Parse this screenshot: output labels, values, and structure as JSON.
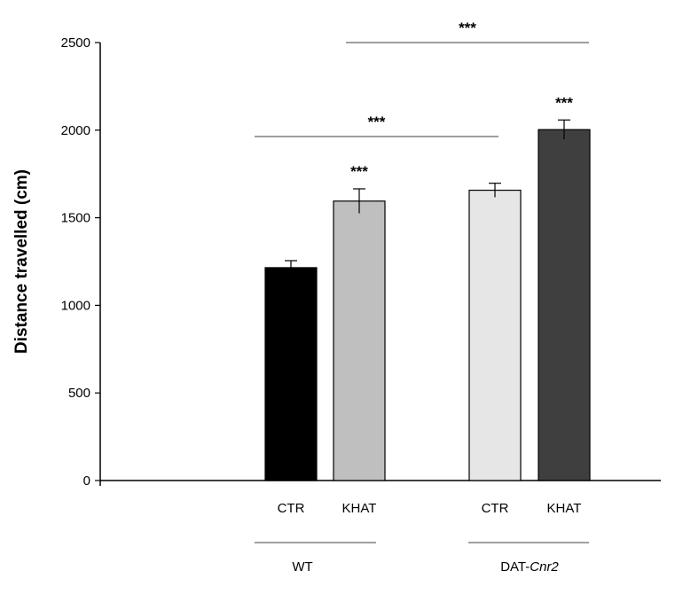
{
  "chart_data": {
    "type": "bar",
    "ylabel": "Distance travelled (cm)",
    "xlabel": "",
    "ylim": [
      0,
      2500
    ],
    "yticks": [
      0,
      500,
      1000,
      1500,
      2000,
      2500
    ],
    "grid": false,
    "bars": [
      {
        "category": "CTR",
        "group": "WT",
        "value": 1215,
        "error": 40,
        "color": "#000000",
        "sig": ""
      },
      {
        "category": "KHAT",
        "group": "WT",
        "value": 1595,
        "error": 70,
        "color": "#bfbfbf",
        "sig": "***"
      },
      {
        "category": "CTR",
        "group": "DAT-Cnr2",
        "value": 1657,
        "error": 40,
        "color": "#e6e6e6",
        "sig": ""
      },
      {
        "category": "KHAT",
        "group": "DAT-Cnr2",
        "value": 2003,
        "error": 55,
        "color": "#3f3f3f",
        "sig": "***"
      }
    ],
    "groups": [
      {
        "name": "WT",
        "name_plain": "WT",
        "name_italic": ""
      },
      {
        "name": "DAT-Cnr2",
        "name_plain": "DAT-",
        "name_italic": "Cnr2"
      }
    ],
    "comparisons": [
      {
        "from_bar": 0,
        "to_bar": 2,
        "label": "***"
      },
      {
        "from_bar": 1,
        "to_bar": 3,
        "label": "***"
      }
    ]
  }
}
